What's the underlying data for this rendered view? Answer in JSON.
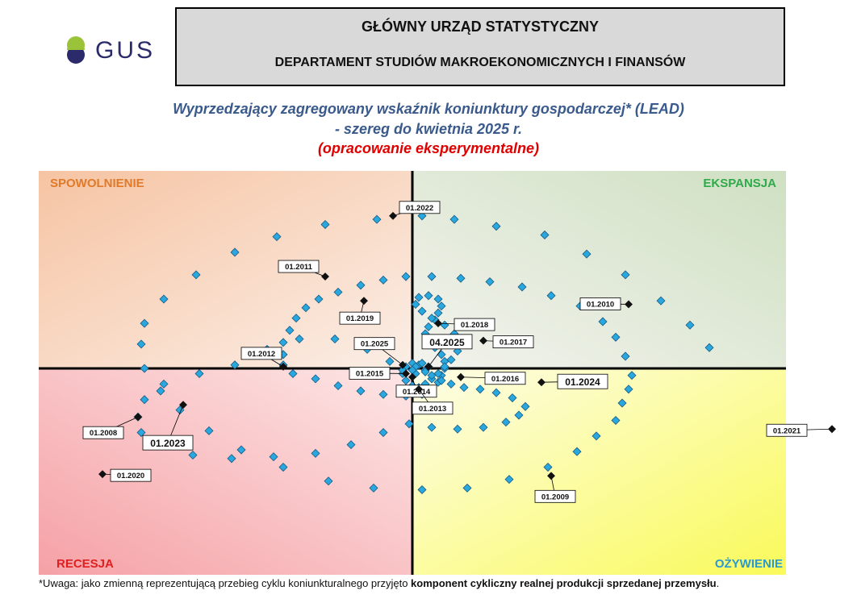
{
  "header": {
    "logo_text": "GUS",
    "org_line1": "GŁÓWNY URZĄD STATYSTYCZNY",
    "org_line2": "DEPARTAMENT STUDIÓW MAKROEKONOMICZNYCH I FINANSÓW"
  },
  "titles": {
    "line1": "Wyprzedzający zagregowany wskaźnik koniunktury gospodarczej* (LEAD)",
    "line2": "- szereg do kwietnia 2025 r.",
    "line3": "(opracowanie eksperymentalne)"
  },
  "colors": {
    "point": "#29a8e0",
    "point_border": "#1a5a80",
    "highlight": "#111111",
    "title_blue": "#3a5a8c",
    "title_red": "#e00000",
    "spowolnienie": "#e07a2a",
    "ekspansja": "#2eaa4a",
    "recesja": "#e02020",
    "ozywienie": "#2a9ad0"
  },
  "footnote": {
    "prefix": "*Uwaga: jako zmienną reprezentującą przebieg cyklu koniunkturalnego przyjęto ",
    "bold": "komponent cykliczny realnej produkcji sprzedanej przemysłu",
    "suffix": "."
  },
  "chart_data": {
    "type": "scatter",
    "title": "Wyprzedzający zagregowany wskaźnik koniunktury gospodarczej* (LEAD)",
    "xlim": [
      -1,
      1
    ],
    "ylim": [
      -1,
      1
    ],
    "grid": false,
    "quadrants": {
      "top_left": "SPOWOLNIENIE",
      "top_right": "EKSPANSJA",
      "bottom_left": "RECESJA",
      "bottom_right": "OŻYWIENIE"
    },
    "points": [
      [
        0.92,
        0.12
      ],
      [
        0.86,
        0.25
      ],
      [
        0.77,
        0.39
      ],
      [
        0.66,
        0.54
      ],
      [
        0.54,
        0.66
      ],
      [
        0.41,
        0.77
      ],
      [
        0.26,
        0.82
      ],
      [
        0.13,
        0.86
      ],
      [
        0.03,
        0.88
      ],
      [
        -0.11,
        0.86
      ],
      [
        -0.27,
        0.83
      ],
      [
        -0.42,
        0.76
      ],
      [
        -0.55,
        0.67
      ],
      [
        -0.67,
        0.54
      ],
      [
        -0.77,
        0.4
      ],
      [
        -0.83,
        0.26
      ],
      [
        -0.84,
        0.14
      ],
      [
        -0.83,
        0.0
      ],
      [
        -0.78,
        -0.13
      ],
      [
        -0.72,
        -0.24
      ],
      [
        -0.63,
        -0.36
      ],
      [
        -0.53,
        -0.47
      ],
      [
        -0.4,
        -0.57
      ],
      [
        -0.26,
        -0.65
      ],
      [
        -0.12,
        -0.69
      ],
      [
        0.03,
        -0.7
      ],
      [
        0.17,
        -0.69
      ],
      [
        0.3,
        -0.64
      ],
      [
        0.42,
        -0.57
      ],
      [
        0.51,
        -0.48
      ],
      [
        0.57,
        -0.39
      ],
      [
        0.63,
        -0.3
      ],
      [
        0.65,
        -0.2
      ],
      [
        0.67,
        -0.12
      ],
      [
        0.68,
        -0.04
      ],
      [
        0.66,
        0.07
      ],
      [
        0.63,
        0.18
      ],
      [
        0.59,
        0.27
      ],
      [
        0.52,
        0.36
      ],
      [
        0.43,
        0.42
      ],
      [
        0.34,
        0.47
      ],
      [
        0.24,
        0.5
      ],
      [
        0.15,
        0.52
      ],
      [
        0.06,
        0.53
      ],
      [
        -0.02,
        0.53
      ],
      [
        -0.09,
        0.51
      ],
      [
        -0.16,
        0.48
      ],
      [
        -0.23,
        0.44
      ],
      [
        -0.29,
        0.4
      ],
      [
        -0.33,
        0.35
      ],
      [
        -0.36,
        0.29
      ],
      [
        -0.38,
        0.22
      ],
      [
        -0.4,
        0.15
      ],
      [
        -0.4,
        0.08
      ],
      [
        -0.4,
        0.02
      ],
      [
        -0.37,
        -0.03
      ],
      [
        -0.3,
        -0.06
      ],
      [
        -0.23,
        -0.1
      ],
      [
        -0.16,
        -0.13
      ],
      [
        -0.09,
        -0.15
      ],
      [
        -0.02,
        -0.16
      ],
      [
        0.03,
        -0.15
      ],
      [
        0.06,
        -0.12
      ],
      [
        0.08,
        -0.08
      ],
      [
        0.09,
        -0.04
      ],
      [
        0.1,
        0.0
      ],
      [
        0.1,
        0.04
      ],
      [
        0.09,
        0.08
      ],
      [
        0.07,
        0.12
      ],
      [
        0.05,
        0.16
      ],
      [
        0.04,
        0.2
      ],
      [
        0.05,
        0.24
      ],
      [
        0.07,
        0.28
      ],
      [
        0.08,
        0.32
      ],
      [
        0.09,
        0.36
      ],
      [
        0.08,
        0.4
      ],
      [
        0.05,
        0.42
      ],
      [
        0.02,
        0.41
      ],
      [
        0.01,
        0.37
      ],
      [
        0.03,
        0.33
      ],
      [
        0.06,
        0.29
      ],
      [
        0.1,
        0.25
      ],
      [
        0.13,
        0.2
      ],
      [
        0.15,
        0.15
      ],
      [
        0.14,
        0.1
      ],
      [
        0.12,
        0.05
      ],
      [
        0.1,
        0.01
      ],
      [
        0.08,
        -0.03
      ],
      [
        0.06,
        -0.06
      ],
      [
        0.04,
        -0.09
      ],
      [
        0.02,
        -0.11
      ],
      [
        0.0,
        -0.1
      ],
      [
        -0.02,
        -0.07
      ],
      [
        -0.03,
        -0.03
      ],
      [
        -0.02,
        0.01
      ],
      [
        0.0,
        0.03
      ],
      [
        0.02,
        0.02
      ],
      [
        0.04,
        -0.01
      ],
      [
        0.06,
        -0.04
      ],
      [
        0.09,
        -0.07
      ],
      [
        0.12,
        -0.09
      ],
      [
        0.16,
        -0.11
      ],
      [
        0.21,
        -0.12
      ],
      [
        0.26,
        -0.14
      ],
      [
        0.31,
        -0.17
      ],
      [
        0.35,
        -0.22
      ],
      [
        0.33,
        -0.27
      ],
      [
        0.29,
        -0.31
      ],
      [
        0.22,
        -0.34
      ],
      [
        0.14,
        -0.35
      ],
      [
        0.06,
        -0.34
      ],
      [
        -0.01,
        -0.32
      ],
      [
        -0.09,
        -0.37
      ],
      [
        -0.19,
        -0.44
      ],
      [
        -0.3,
        -0.49
      ],
      [
        -0.43,
        -0.51
      ],
      [
        -0.56,
        -0.52
      ],
      [
        -0.68,
        -0.5
      ],
      [
        -0.78,
        -0.44
      ],
      [
        -0.84,
        -0.37
      ],
      [
        -0.85,
        -0.28
      ],
      [
        -0.83,
        -0.18
      ],
      [
        -0.77,
        -0.09
      ],
      [
        -0.66,
        -0.03
      ],
      [
        -0.55,
        0.02
      ],
      [
        -0.45,
        0.11
      ],
      [
        -0.35,
        0.17
      ],
      [
        -0.24,
        0.17
      ],
      [
        -0.14,
        0.11
      ],
      [
        -0.07,
        0.04
      ],
      [
        -0.03,
        -0.01
      ],
      [
        0.01,
        -0.03
      ],
      [
        0.04,
        -0.02
      ],
      [
        0.05,
        0.01
      ],
      [
        0.03,
        0.03
      ],
      [
        0.01,
        0.01
      ],
      [
        0.0,
        -0.01
      ]
    ],
    "labels": [
      {
        "text": "01.2022",
        "x": -0.06,
        "y": 0.88
      },
      {
        "text": "01.2011",
        "x": -0.27,
        "y": 0.53
      },
      {
        "text": "01.2010",
        "x": 0.67,
        "y": 0.37
      },
      {
        "text": "01.2019",
        "x": -0.15,
        "y": 0.39
      },
      {
        "text": "01.2018",
        "x": 0.08,
        "y": 0.26
      },
      {
        "text": "01.2017",
        "x": 0.22,
        "y": 0.16
      },
      {
        "text": "01.2012",
        "x": -0.4,
        "y": 0.01
      },
      {
        "text": "01.2025",
        "x": -0.03,
        "y": 0.02
      },
      {
        "text": "04.2025",
        "x": 0.05,
        "y": 0.01
      },
      {
        "text": "01.2015",
        "x": -0.02,
        "y": -0.03
      },
      {
        "text": "01.2014",
        "x": 0.0,
        "y": -0.05
      },
      {
        "text": "01.2016",
        "x": 0.15,
        "y": -0.05
      },
      {
        "text": "01.2024",
        "x": 0.4,
        "y": -0.08
      },
      {
        "text": "01.2013",
        "x": 0.02,
        "y": -0.12
      },
      {
        "text": "01.2008",
        "x": -0.85,
        "y": -0.28
      },
      {
        "text": "01.2023",
        "x": -0.71,
        "y": -0.21
      },
      {
        "text": "01.2021",
        "x": 1.35,
        "y": -0.35
      },
      {
        "text": "01.2020",
        "x": -0.96,
        "y": -0.61
      },
      {
        "text": "01.2009",
        "x": 0.43,
        "y": -0.62
      }
    ]
  }
}
